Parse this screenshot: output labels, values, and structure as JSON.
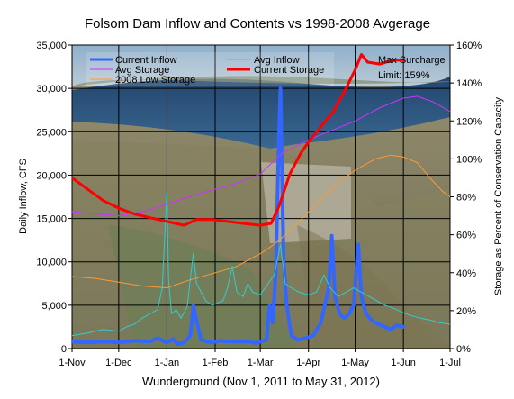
{
  "chart_data": {
    "type": "line",
    "title": "Folsom Dam Inflow and Contents vs 1998-2008 Avgerage",
    "xlabel": "Wunderground (Nov 1, 2011 to May 31, 2012)",
    "ylabel": "Daily Inflow, CFS",
    "y2label": "Storage as Percent of Conservation Capacity",
    "x_ticks": [
      "1-Nov",
      "1-Dec",
      "1-Jan",
      "1-Feb",
      "1-Mar",
      "1-Apr",
      "1-May",
      "1-Jun",
      "1-Jul"
    ],
    "x_tick_days": [
      0,
      30,
      61,
      92,
      121,
      152,
      182,
      213,
      243
    ],
    "ylim": [
      0,
      35000
    ],
    "y_ticks": [
      "0",
      "5,000",
      "10,000",
      "15,000",
      "20,000",
      "25,000",
      "30,000",
      "35,000"
    ],
    "y_tick_values": [
      0,
      5000,
      10000,
      15000,
      20000,
      25000,
      30000,
      35000
    ],
    "y2lim": [
      0,
      160
    ],
    "y2_ticks": [
      "0%",
      "20%",
      "40%",
      "60%",
      "80%",
      "100%",
      "120%",
      "140%",
      "160%"
    ],
    "y2_tick_values": [
      0,
      20,
      40,
      60,
      80,
      100,
      120,
      140,
      160
    ],
    "grid": true,
    "legend_position": "top-left",
    "annotation": {
      "line1": "Max Surcharge",
      "line2": "Limit: 159%"
    },
    "series": [
      {
        "name": "Current Inflow",
        "axis": "left",
        "color": "#3366ff",
        "width": 4,
        "points": [
          [
            0,
            800
          ],
          [
            10,
            700
          ],
          [
            20,
            800
          ],
          [
            30,
            700
          ],
          [
            40,
            900
          ],
          [
            50,
            800
          ],
          [
            55,
            1200
          ],
          [
            61,
            700
          ],
          [
            65,
            1100
          ],
          [
            68,
            500
          ],
          [
            72,
            700
          ],
          [
            76,
            1500
          ],
          [
            78,
            5000
          ],
          [
            80,
            3200
          ],
          [
            83,
            1000
          ],
          [
            87,
            800
          ],
          [
            90,
            700
          ],
          [
            95,
            900
          ],
          [
            100,
            800
          ],
          [
            110,
            800
          ],
          [
            115,
            800
          ],
          [
            118,
            600
          ],
          [
            121,
            800
          ],
          [
            125,
            1000
          ],
          [
            127,
            5000
          ],
          [
            129,
            3000
          ],
          [
            131,
            9000
          ],
          [
            133,
            25000
          ],
          [
            134,
            30000
          ],
          [
            136,
            10000
          ],
          [
            138,
            5000
          ],
          [
            141,
            1500
          ],
          [
            145,
            1000
          ],
          [
            150,
            1200
          ],
          [
            155,
            1500
          ],
          [
            160,
            3000
          ],
          [
            165,
            7000
          ],
          [
            167,
            13000
          ],
          [
            169,
            6000
          ],
          [
            172,
            4000
          ],
          [
            175,
            3500
          ],
          [
            178,
            4000
          ],
          [
            181,
            5000
          ],
          [
            184,
            12000
          ],
          [
            186,
            6000
          ],
          [
            189,
            4000
          ],
          [
            193,
            3200
          ],
          [
            197,
            2800
          ],
          [
            201,
            2500
          ],
          [
            205,
            2200
          ],
          [
            209,
            2700
          ],
          [
            213,
            2500
          ]
        ]
      },
      {
        "name": "Avg Inflow",
        "axis": "left",
        "color": "#33cccc",
        "width": 1,
        "points": [
          [
            0,
            1500
          ],
          [
            10,
            1800
          ],
          [
            20,
            2200
          ],
          [
            30,
            2000
          ],
          [
            35,
            2500
          ],
          [
            40,
            2800
          ],
          [
            45,
            3500
          ],
          [
            50,
            4000
          ],
          [
            55,
            4500
          ],
          [
            58,
            7000
          ],
          [
            61,
            18000
          ],
          [
            62,
            8000
          ],
          [
            64,
            4000
          ],
          [
            67,
            4500
          ],
          [
            70,
            3500
          ],
          [
            74,
            4800
          ],
          [
            76,
            8000
          ],
          [
            78,
            11000
          ],
          [
            80,
            7500
          ],
          [
            83,
            6500
          ],
          [
            86,
            5500
          ],
          [
            90,
            5000
          ],
          [
            93,
            5200
          ],
          [
            97,
            5500
          ],
          [
            100,
            7000
          ],
          [
            103,
            9500
          ],
          [
            106,
            6500
          ],
          [
            110,
            6000
          ],
          [
            113,
            7500
          ],
          [
            116,
            6500
          ],
          [
            121,
            6200
          ],
          [
            126,
            7500
          ],
          [
            130,
            8500
          ],
          [
            134,
            12000
          ],
          [
            137,
            7500
          ],
          [
            141,
            7000
          ],
          [
            146,
            6500
          ],
          [
            152,
            6200
          ],
          [
            157,
            6500
          ],
          [
            162,
            8500
          ],
          [
            166,
            7000
          ],
          [
            171,
            6000
          ],
          [
            176,
            6500
          ],
          [
            181,
            7000
          ],
          [
            186,
            6500
          ],
          [
            191,
            6000
          ],
          [
            196,
            5500
          ],
          [
            201,
            5000
          ],
          [
            206,
            4700
          ],
          [
            212,
            4200
          ],
          [
            218,
            3800
          ],
          [
            224,
            3500
          ],
          [
            230,
            3300
          ],
          [
            236,
            3000
          ],
          [
            243,
            2800
          ]
        ]
      },
      {
        "name": "2008 Low Storage",
        "axis": "right",
        "color": "#ff9933",
        "width": 1,
        "points": [
          [
            0,
            38
          ],
          [
            15,
            37
          ],
          [
            30,
            35
          ],
          [
            45,
            33
          ],
          [
            61,
            32
          ],
          [
            75,
            36
          ],
          [
            92,
            40
          ],
          [
            105,
            43
          ],
          [
            121,
            50
          ],
          [
            130,
            55
          ],
          [
            140,
            62
          ],
          [
            152,
            72
          ],
          [
            162,
            80
          ],
          [
            172,
            88
          ],
          [
            182,
            94
          ],
          [
            195,
            100
          ],
          [
            205,
            102
          ],
          [
            213,
            101
          ],
          [
            222,
            98
          ],
          [
            230,
            90
          ],
          [
            238,
            83
          ],
          [
            243,
            80
          ]
        ]
      },
      {
        "name": "Avg Storage",
        "axis": "right",
        "color": "#cc33ff",
        "width": 1,
        "points": [
          [
            0,
            72
          ],
          [
            15,
            71
          ],
          [
            30,
            70
          ],
          [
            45,
            72
          ],
          [
            61,
            76
          ],
          [
            75,
            80
          ],
          [
            92,
            84
          ],
          [
            105,
            87
          ],
          [
            121,
            92
          ],
          [
            135,
            103
          ],
          [
            152,
            110
          ],
          [
            167,
            115
          ],
          [
            182,
            120
          ],
          [
            198,
            127
          ],
          [
            213,
            132
          ],
          [
            222,
            133
          ],
          [
            232,
            130
          ],
          [
            243,
            125
          ]
        ]
      },
      {
        "name": "Current Storage",
        "axis": "right",
        "color": "#ff0000",
        "width": 3,
        "points": [
          [
            0,
            90
          ],
          [
            10,
            84
          ],
          [
            20,
            78
          ],
          [
            30,
            74
          ],
          [
            40,
            71
          ],
          [
            50,
            69
          ],
          [
            61,
            67
          ],
          [
            72,
            65
          ],
          [
            80,
            68
          ],
          [
            90,
            68
          ],
          [
            100,
            67
          ],
          [
            110,
            66
          ],
          [
            121,
            65
          ],
          [
            128,
            66
          ],
          [
            133,
            75
          ],
          [
            140,
            92
          ],
          [
            147,
            103
          ],
          [
            153,
            110
          ],
          [
            160,
            117
          ],
          [
            168,
            125
          ],
          [
            176,
            137
          ],
          [
            182,
            147
          ],
          [
            186,
            155
          ],
          [
            190,
            151
          ],
          [
            198,
            150
          ],
          [
            206,
            152
          ],
          [
            213,
            152
          ]
        ]
      }
    ]
  }
}
